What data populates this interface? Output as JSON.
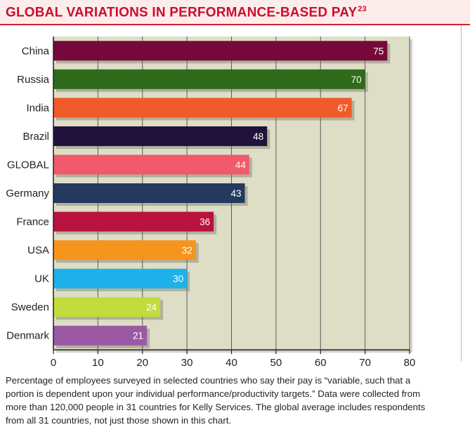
{
  "header": {
    "title": "GLOBAL VARIATIONS IN PERFORMANCE-BASED PAY",
    "title_sup": "23"
  },
  "caption": "Percentage of employees surveyed in selected countries who say their pay is “variable, such that a portion is dependent upon your individual performance/productivity targets.” Data were collected from more than 120,000 people in 31 countries for Kelly Services. The global average includes respondents from all 31 countries, not just those shown in this chart.",
  "chart_data": {
    "type": "bar",
    "orientation": "horizontal",
    "title": "GLOBAL VARIATIONS IN PERFORMANCE-BASED PAY",
    "xlabel": "",
    "ylabel": "",
    "categories": [
      "China",
      "Russia",
      "India",
      "Brazil",
      "GLOBAL",
      "Germany",
      "France",
      "USA",
      "UK",
      "Sweden",
      "Denmark"
    ],
    "values": [
      75,
      70,
      67,
      48,
      44,
      43,
      36,
      32,
      30,
      24,
      21
    ],
    "colors": [
      "#76093a",
      "#2e6b1b",
      "#f15a29",
      "#20123a",
      "#f05a6a",
      "#233a5e",
      "#b8123e",
      "#f7941d",
      "#1eb1ea",
      "#c2dc3b",
      "#9b59a3"
    ],
    "xlim": [
      0,
      80
    ],
    "xticks": [
      0,
      10,
      20,
      30,
      40,
      50,
      60,
      70,
      80
    ],
    "grid": true,
    "plot_background": "#deddc6",
    "gridline_color": "#5b5b5b",
    "data_labels": true
  }
}
